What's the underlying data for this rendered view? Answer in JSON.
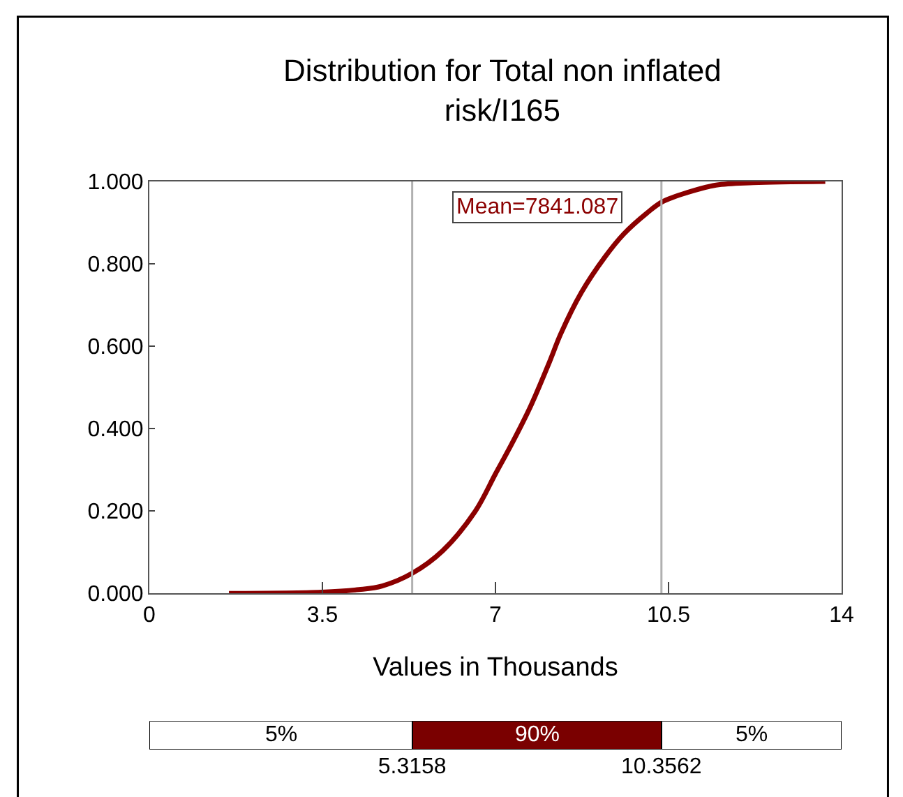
{
  "chart_data": [
    {
      "type": "line",
      "title": "Distribution for Total non inflated\nrisk/I165",
      "xlabel": "Values in Thousands",
      "x": [
        1.61,
        3.49,
        4.24,
        4.71,
        5.32,
        5.93,
        6.59,
        7.0,
        7.33,
        7.71,
        8.09,
        8.32,
        8.74,
        9.21,
        9.59,
        10.06,
        10.38,
        10.9,
        11.46,
        12.21,
        13.67
      ],
      "series": [
        {
          "color": "#8b0000",
          "values": [
            0.0,
            0.003,
            0.009,
            0.018,
            0.049,
            0.103,
            0.199,
            0.29,
            0.363,
            0.454,
            0.561,
            0.63,
            0.731,
            0.816,
            0.872,
            0.923,
            0.951,
            0.974,
            0.991,
            0.997,
            1.0
          ]
        }
      ],
      "xlim": [
        0,
        14
      ],
      "xticks": [
        0,
        3.5,
        7,
        10.5,
        14
      ],
      "ylim": [
        0,
        1
      ],
      "yticks": [
        {
          "value": 0,
          "label": "0.000"
        },
        {
          "value": 0.2,
          "label": "0.200"
        },
        {
          "value": 0.4,
          "label": "0.400"
        },
        {
          "value": 0.6,
          "label": "0.600"
        },
        {
          "value": 0.8,
          "label": "0.800"
        },
        {
          "value": 1,
          "label": "1.000"
        }
      ],
      "annotations": [
        "Mean=7841.087"
      ],
      "ref_lines": [
        {
          "axis": "x",
          "value": 5.3158,
          "color": "#b0b0b0"
        },
        {
          "axis": "x",
          "value": 10.3562,
          "color": "#b0b0b0"
        }
      ],
      "legend": false,
      "marker": "none",
      "line_style": "solid"
    },
    {
      "type": "bar",
      "orientation": "horizontal",
      "stacked": true,
      "categories": [
        null
      ],
      "series": [
        {
          "name": "5%",
          "color": "#ffffff",
          "values": [
            5.3158
          ]
        },
        {
          "name": "90%",
          "color": "#7a0000",
          "values": [
            5.0404
          ]
        },
        {
          "name": "5%",
          "color": "#ffffff",
          "values": [
            3.6438
          ]
        }
      ],
      "xlim": [
        0,
        14
      ],
      "xticks": [
        5.3158,
        10.3562
      ],
      "tick_labels": "x",
      "legend": false
    }
  ]
}
